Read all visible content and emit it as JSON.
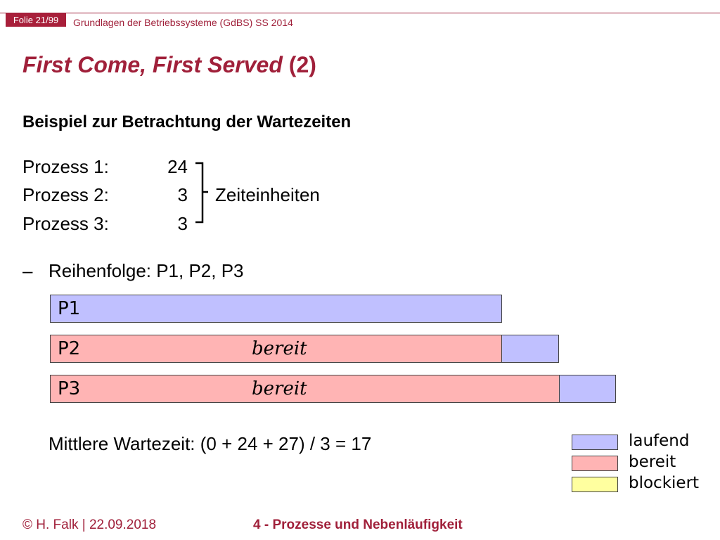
{
  "header": {
    "slide_number": "Folie 21/99",
    "course": "Grundlagen der Betriebssysteme (GdBS) SS 2014"
  },
  "title": {
    "emphasis": "First Come, First Served",
    "suffix": " (2)"
  },
  "subtitle": "Beispiel zur Betrachtung der Wartezeiten",
  "processes": [
    {
      "label": "Prozess 1:",
      "value": "24"
    },
    {
      "label": "Prozess 2:",
      "value": "3"
    },
    {
      "label": "Prozess 3:",
      "value": "3"
    }
  ],
  "unit": "Zeiteinheiten",
  "bullet": {
    "dash": "–",
    "text": "Reihenfolge: P1, P2, P3"
  },
  "gantt": {
    "rows": [
      {
        "label": "P1",
        "state_label": ""
      },
      {
        "label": "P2",
        "state_label": "bereit"
      },
      {
        "label": "P3",
        "state_label": "bereit"
      }
    ],
    "colors": {
      "laufend": "#c0c0ff",
      "bereit": "#ffb4b4",
      "blockiert": "#ffff9f"
    }
  },
  "average": "Mittlere Wartezeit: (0 + 24 + 27) / 3 = 17",
  "legend": [
    {
      "label": "laufend",
      "color": "#c0c0ff"
    },
    {
      "label": "bereit",
      "color": "#ffb4b4"
    },
    {
      "label": "blockiert",
      "color": "#ffff9f"
    }
  ],
  "footer": {
    "left": "© H. Falk | 22.09.2018",
    "center": "4 - Prozesse und Nebenläufigkeit"
  }
}
